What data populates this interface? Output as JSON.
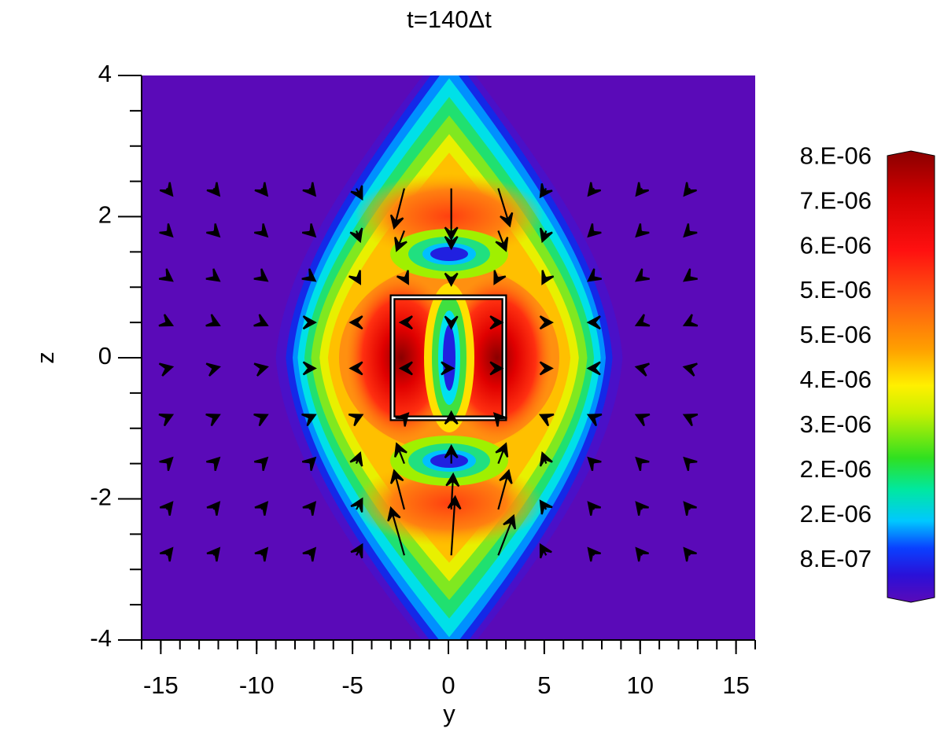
{
  "chart_data": {
    "type": "contour",
    "title": "t=140Δt",
    "xlabel": "y",
    "ylabel": "z",
    "xlim": [
      -16,
      16
    ],
    "ylim": [
      -4,
      4
    ],
    "xticks": [
      -15,
      -10,
      -5,
      0,
      5,
      10,
      15
    ],
    "yticks": [
      -4,
      -2,
      0,
      2,
      4
    ],
    "colorbar": {
      "clim": [
        1.6e-07,
        7.76e-06
      ],
      "ticks": [
        {
          "value": 8e-07,
          "label": "8.E-07"
        },
        {
          "value": 1.57e-06,
          "label": "2.E-06"
        },
        {
          "value": 2.34e-06,
          "label": "2.E-06"
        },
        {
          "value": 3.11e-06,
          "label": "3.E-06"
        },
        {
          "value": 3.88e-06,
          "label": "4.E-06"
        },
        {
          "value": 4.65e-06,
          "label": "5.E-06"
        },
        {
          "value": 5.42e-06,
          "label": "5.E-06"
        },
        {
          "value": 6.19e-06,
          "label": "6.E-06"
        },
        {
          "value": 6.96e-06,
          "label": "7.E-06"
        },
        {
          "value": 7.73e-06,
          "label": "8.E-06"
        }
      ]
    },
    "vectors": {
      "color": "#000000",
      "y": [
        -14.7,
        -12.25,
        -9.75,
        -7.25,
        -4.8,
        -2.3,
        0.15,
        2.6,
        5.1,
        7.6,
        10.1,
        12.6
      ],
      "z": [
        2.4,
        1.8,
        1.15,
        0.5,
        -0.15,
        -0.85,
        -1.5,
        -2.15,
        -2.8
      ],
      "u": [
        [
          0.3,
          0.3,
          0.3,
          0.3,
          0.3,
          -0.53,
          0,
          0.6,
          -0.3,
          -0.3,
          -0.3,
          -0.3
        ],
        [
          0.3,
          0.3,
          0.3,
          0.3,
          0.2,
          -0.4,
          0,
          0.4,
          -0.2,
          -0.3,
          -0.3,
          -0.3
        ],
        [
          0.3,
          0.3,
          0.3,
          0.3,
          0.2,
          0.2,
          0,
          -0.2,
          -0.2,
          -0.3,
          -0.3,
          -0.3
        ],
        [
          0.3,
          0.3,
          0.3,
          0.3,
          -0.3,
          -0.2,
          0,
          0.2,
          0.3,
          -0.3,
          -0.3,
          -0.3
        ],
        [
          0.3,
          0.3,
          0.3,
          0.3,
          -0.3,
          -0.2,
          0.1,
          0.2,
          0.3,
          -0.3,
          -0.3,
          -0.3
        ],
        [
          0.3,
          0.3,
          0.3,
          0.3,
          0.3,
          0.2,
          0,
          -0.2,
          -0.3,
          -0.3,
          -0.3,
          -0.3
        ],
        [
          0.3,
          0.3,
          0.3,
          0.3,
          0.2,
          -0.4,
          0,
          0.4,
          -0.2,
          -0.3,
          -0.3,
          -0.3
        ],
        [
          0.3,
          0.3,
          0.3,
          0.3,
          0.3,
          -0.53,
          0.1,
          0.55,
          -0.3,
          -0.3,
          -0.3,
          -0.3
        ],
        [
          0.3,
          0.3,
          0.3,
          0.3,
          0.3,
          -0.7,
          0.2,
          0.8,
          -0.3,
          -0.3,
          -0.3,
          -0.3
        ]
      ],
      "w": [
        [
          -0.1,
          -0.1,
          -0.1,
          -0.1,
          -0.15,
          -0.56,
          -0.72,
          -0.53,
          -0.12,
          -0.1,
          -0.1,
          -0.1
        ],
        [
          -0.08,
          -0.08,
          -0.08,
          -0.08,
          -0.15,
          -0.28,
          -0.25,
          -0.28,
          -0.15,
          -0.08,
          -0.08,
          -0.08
        ],
        [
          -0.06,
          -0.06,
          -0.06,
          -0.06,
          -0.1,
          -0.1,
          -0.12,
          -0.1,
          -0.1,
          -0.06,
          -0.06,
          -0.06
        ],
        [
          -0.04,
          -0.04,
          -0.04,
          0,
          0,
          0,
          -0.08,
          0,
          0,
          0,
          -0.04,
          -0.04
        ],
        [
          0.02,
          0.02,
          0.02,
          0,
          0,
          0,
          0,
          0,
          0,
          0,
          0.02,
          0.02
        ],
        [
          0.04,
          0.04,
          0.04,
          0.04,
          0.04,
          0.06,
          0.08,
          0.06,
          0.04,
          0.04,
          0.04,
          0.04
        ],
        [
          0.08,
          0.08,
          0.08,
          0.08,
          0.15,
          0.28,
          0.25,
          0.28,
          0.15,
          0.08,
          0.08,
          0.08
        ],
        [
          0.1,
          0.1,
          0.1,
          0.1,
          0.15,
          0.55,
          0.5,
          0.55,
          0.12,
          0.1,
          0.1,
          0.1
        ],
        [
          0.1,
          0.1,
          0.1,
          0.1,
          0.15,
          0.67,
          0.83,
          0.56,
          0.15,
          0.1,
          0.1,
          0.1
        ]
      ]
    }
  }
}
